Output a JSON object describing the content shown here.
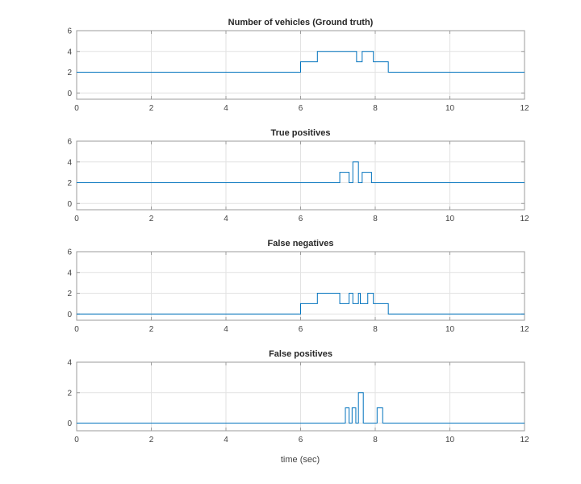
{
  "figure": {
    "xlabel": "time (sec)"
  },
  "style": {
    "line_color": "#0072BD",
    "grid_color": "#e2e2e2",
    "axis_color": "#9b9b9b",
    "tick_label_color": "#424242",
    "title_color": "#262626",
    "background": "#ffffff"
  },
  "chart_data": [
    {
      "type": "step",
      "title": "Number of vehicles (Ground truth)",
      "xlim": [
        0,
        12
      ],
      "ylim": [
        -0.6,
        6
      ],
      "xticks": [
        0,
        2,
        4,
        6,
        8,
        10,
        12
      ],
      "yticks": [
        0,
        2,
        4,
        6
      ],
      "grid": true,
      "points": [
        [
          0,
          2
        ],
        [
          6.0,
          3
        ],
        [
          6.45,
          4
        ],
        [
          7.5,
          3
        ],
        [
          7.65,
          4
        ],
        [
          7.95,
          3
        ],
        [
          8.35,
          2
        ]
      ]
    },
    {
      "type": "step",
      "title": "True positives",
      "xlim": [
        0,
        12
      ],
      "ylim": [
        -0.6,
        6
      ],
      "xticks": [
        0,
        2,
        4,
        6,
        8,
        10,
        12
      ],
      "yticks": [
        0,
        2,
        4,
        6
      ],
      "grid": true,
      "points": [
        [
          0,
          2
        ],
        [
          7.05,
          3
        ],
        [
          7.3,
          2
        ],
        [
          7.4,
          4
        ],
        [
          7.55,
          2
        ],
        [
          7.65,
          3
        ],
        [
          7.9,
          2
        ]
      ]
    },
    {
      "type": "step",
      "title": "False  negatives",
      "xlim": [
        0,
        12
      ],
      "ylim": [
        -0.6,
        6
      ],
      "xticks": [
        0,
        2,
        4,
        6,
        8,
        10,
        12
      ],
      "yticks": [
        0,
        2,
        4,
        6
      ],
      "grid": true,
      "points": [
        [
          0,
          0
        ],
        [
          6.0,
          1
        ],
        [
          6.45,
          2
        ],
        [
          7.05,
          1
        ],
        [
          7.3,
          2
        ],
        [
          7.4,
          1
        ],
        [
          7.55,
          2
        ],
        [
          7.6,
          1
        ],
        [
          7.8,
          2
        ],
        [
          7.95,
          1
        ],
        [
          8.35,
          0
        ]
      ]
    },
    {
      "type": "step",
      "title": "False positives",
      "xlim": [
        0,
        12
      ],
      "ylim": [
        -0.5,
        4
      ],
      "xticks": [
        0,
        2,
        4,
        6,
        8,
        10,
        12
      ],
      "yticks": [
        0,
        2,
        4
      ],
      "grid": true,
      "points": [
        [
          0,
          0
        ],
        [
          7.2,
          1
        ],
        [
          7.3,
          0
        ],
        [
          7.38,
          1
        ],
        [
          7.48,
          0
        ],
        [
          7.55,
          2
        ],
        [
          7.68,
          0
        ],
        [
          8.05,
          1
        ],
        [
          8.2,
          0
        ]
      ]
    }
  ]
}
